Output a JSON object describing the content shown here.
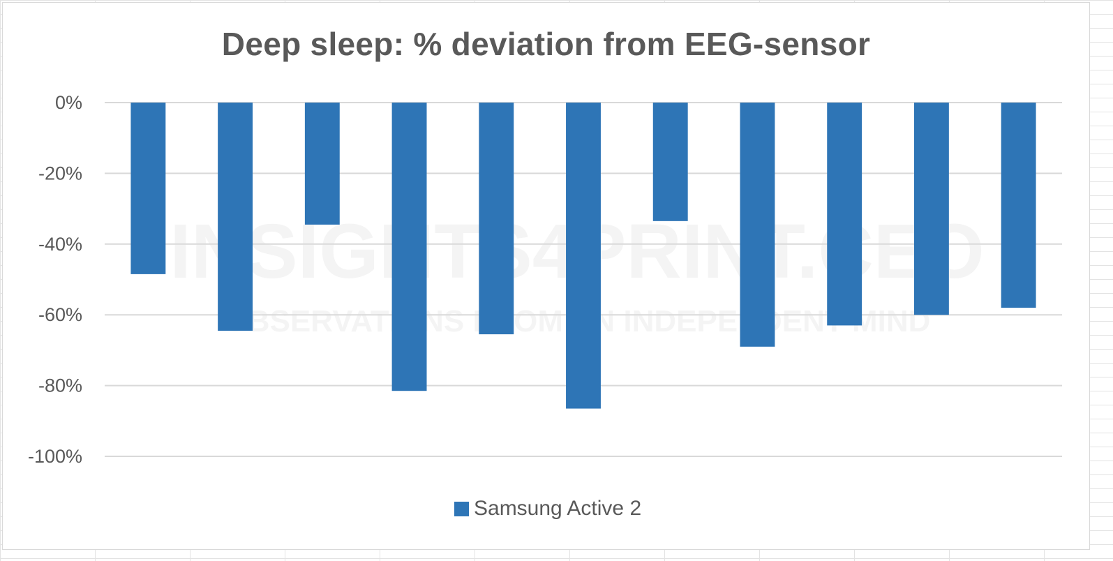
{
  "chart_data": {
    "type": "bar",
    "title": "Deep sleep: % deviation from EEG-sensor",
    "xlabel": "",
    "ylabel": "",
    "ylim": [
      -100,
      0
    ],
    "yticks": [
      0,
      -20,
      -40,
      -60,
      -80,
      -100
    ],
    "ytick_labels": [
      "0%",
      "-20%",
      "-40%",
      "-60%",
      "-80%",
      "-100%"
    ],
    "grid": true,
    "legend": "bottom",
    "watermark": [
      "INSIGHTS4PRINT.CEO",
      "OBSERVATIONS FROM AN INDEPENDENT MIND"
    ],
    "series": [
      {
        "name": "Samsung Active 2",
        "color": "#2e75b6",
        "values": [
          -48.5,
          -64.5,
          -34.5,
          -81.5,
          -65.5,
          -86.5,
          -33.5,
          -69,
          -63,
          -60,
          -58
        ]
      }
    ]
  }
}
